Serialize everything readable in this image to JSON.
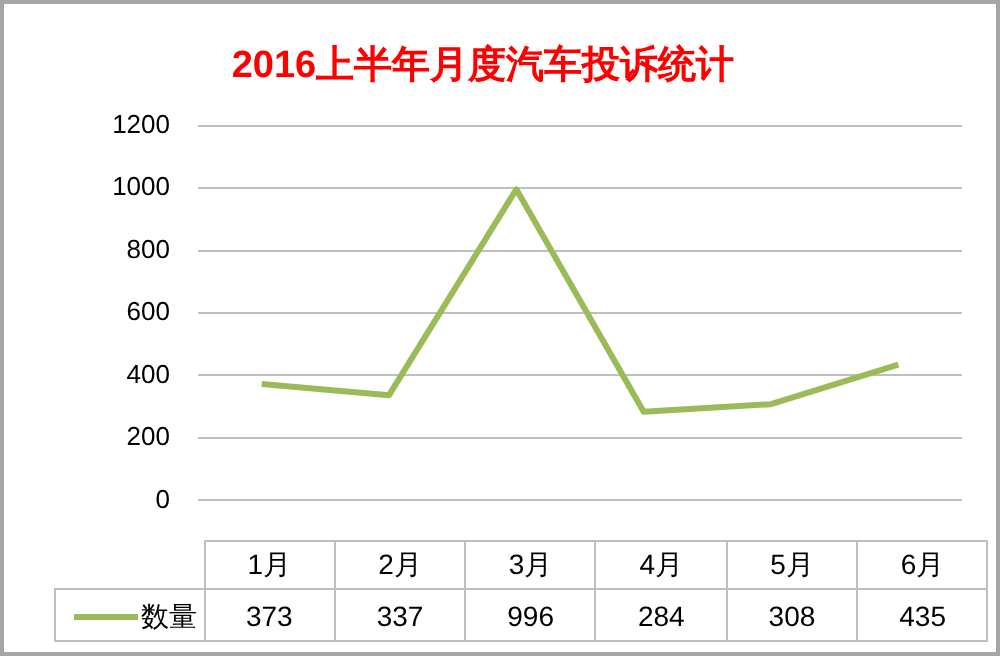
{
  "chart_data": {
    "type": "line",
    "title": "2016上半年月度汽车投诉统计",
    "categories": [
      "1月",
      "2月",
      "3月",
      "4月",
      "5月",
      "6月"
    ],
    "series": [
      {
        "name": "数量",
        "color": "#9bbb59",
        "values": [
          373,
          337,
          996,
          284,
          308,
          435
        ]
      }
    ],
    "ylim": [
      0,
      1200
    ],
    "yticks": [
      0,
      200,
      400,
      600,
      800,
      1000,
      1200
    ],
    "grid": "y",
    "legend": "bottom",
    "marker": "none",
    "line_style": "solid",
    "data_labels": true
  }
}
